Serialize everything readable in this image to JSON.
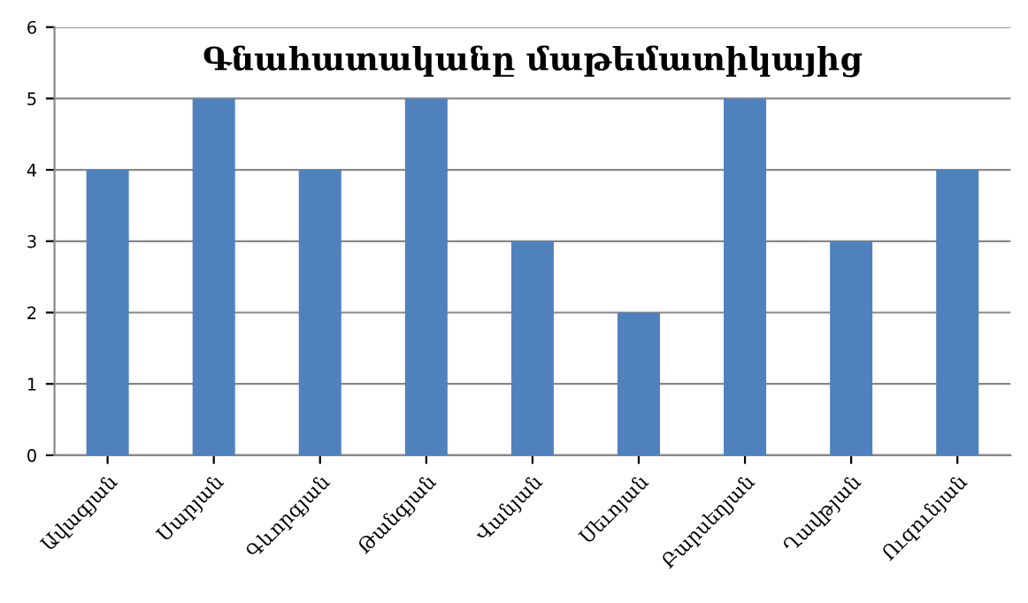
{
  "chart_data": {
    "type": "bar",
    "title": "Գնահատականը մաթեմատիկայից",
    "categories": [
      "Ավագյան",
      "Սարյան",
      "Գևորգյան",
      "Թանգյան",
      "Վանյան",
      "Սեւոյան",
      "Բարսեղյան",
      "Ղավթյան",
      "Ուզունյան"
    ],
    "values": [
      4,
      5,
      4,
      5,
      3,
      2,
      5,
      3,
      4
    ],
    "color": "#4f81bd",
    "ylim": [
      0,
      6
    ],
    "yticks": [
      0,
      1,
      2,
      3,
      4,
      5,
      6
    ],
    "grid": "y"
  }
}
